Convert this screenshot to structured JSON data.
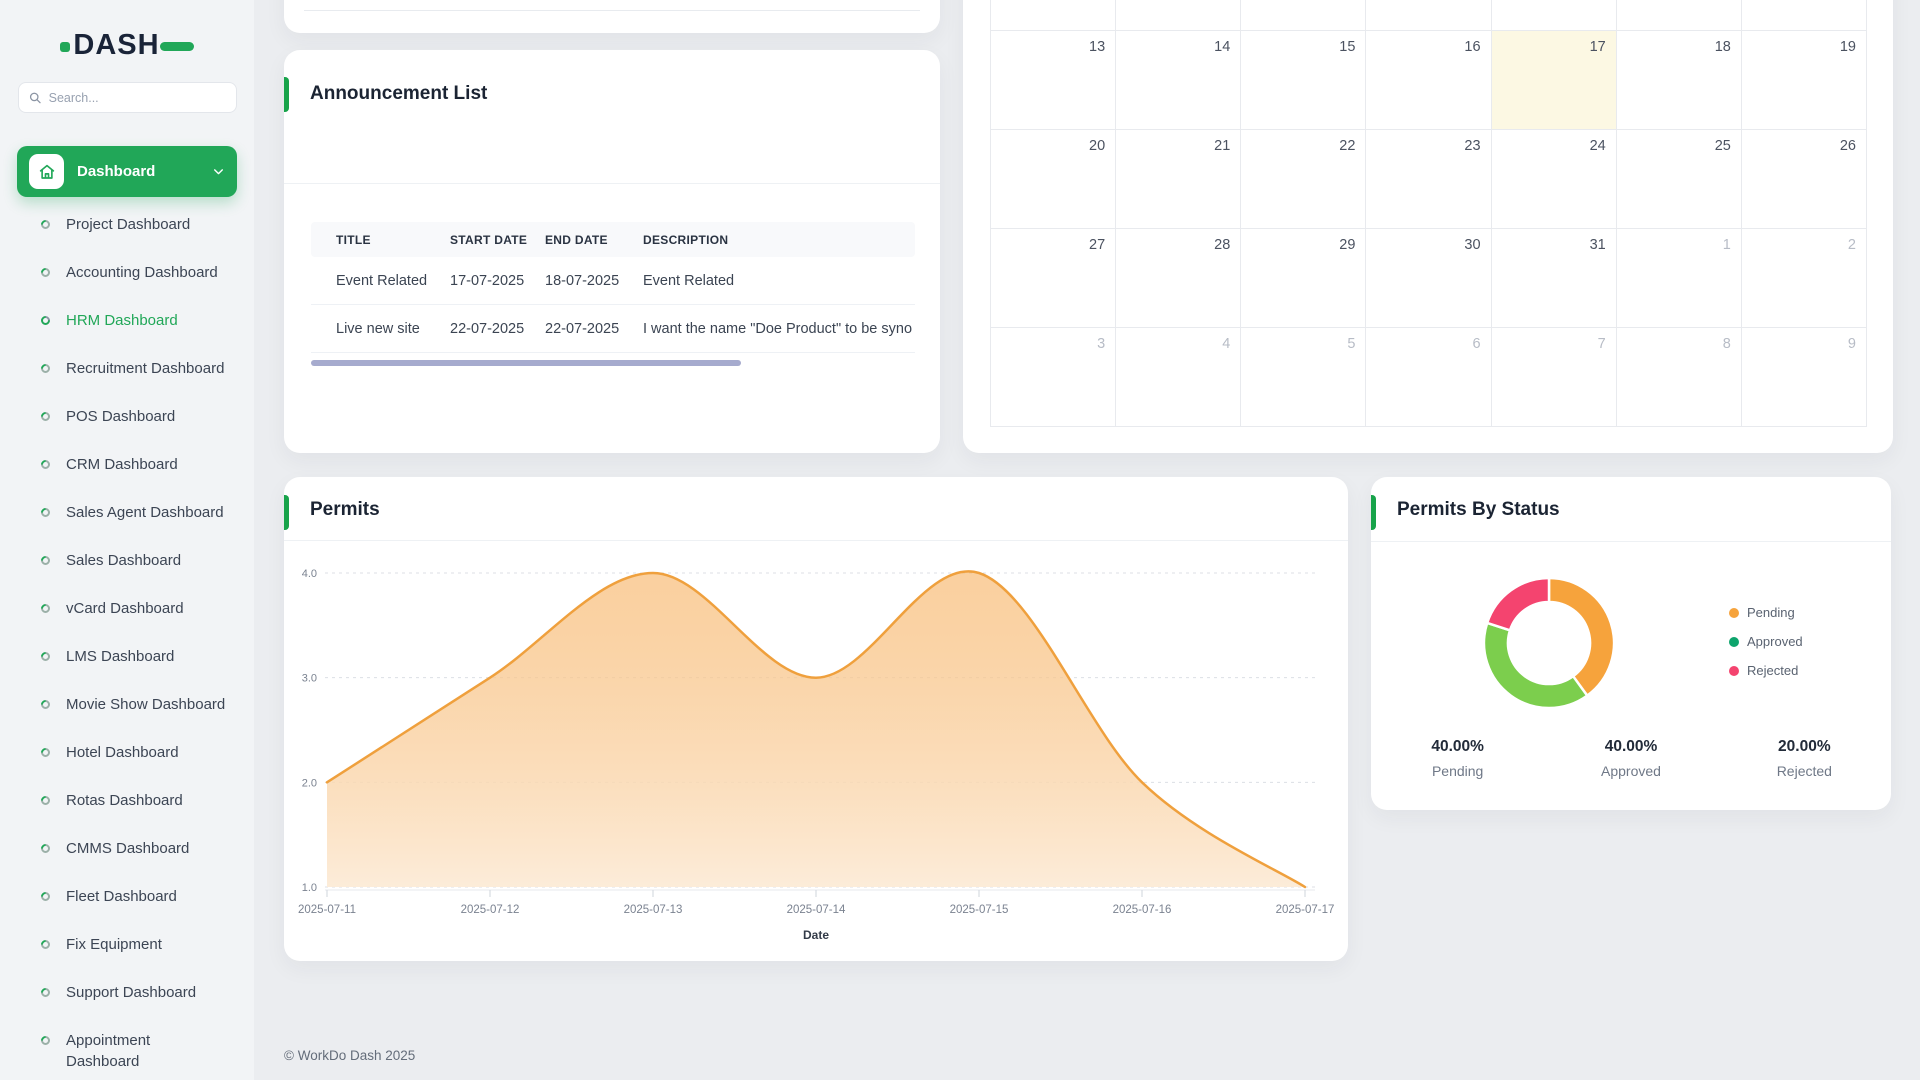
{
  "app": {
    "logo_text": "DASH"
  },
  "footer": {
    "text": "© WorkDo Dash 2025"
  },
  "colors": {
    "primary_green": "#21a758",
    "accent_bar": "#17a34a",
    "area_line": "#efa03d",
    "donut_orange": "#f6a33c",
    "donut_green": "#7cce4d",
    "donut_pink": "#f4446f",
    "legend_approved_dot": "#0da46c",
    "calendar_highlight": "#fcf8e3"
  },
  "sidebar": {
    "search_placeholder": "Search...",
    "menu_label": "Dashboard",
    "items": [
      {
        "label": "Project Dashboard",
        "active": false,
        "wrap": false
      },
      {
        "label": "Accounting Dashboard",
        "active": false,
        "wrap": false
      },
      {
        "label": "HRM Dashboard",
        "active": true,
        "wrap": false
      },
      {
        "label": "Recruitment Dashboard",
        "active": false,
        "wrap": false
      },
      {
        "label": "POS Dashboard",
        "active": false,
        "wrap": false
      },
      {
        "label": "CRM Dashboard",
        "active": false,
        "wrap": false
      },
      {
        "label": "Sales Agent Dashboard",
        "active": false,
        "wrap": false
      },
      {
        "label": "Sales Dashboard",
        "active": false,
        "wrap": false
      },
      {
        "label": "vCard Dashboard",
        "active": false,
        "wrap": false
      },
      {
        "label": "LMS Dashboard",
        "active": false,
        "wrap": false
      },
      {
        "label": "Movie Show Dashboard",
        "active": false,
        "wrap": false
      },
      {
        "label": "Hotel Dashboard",
        "active": false,
        "wrap": false
      },
      {
        "label": "Rotas Dashboard",
        "active": false,
        "wrap": false
      },
      {
        "label": "CMMS Dashboard",
        "active": false,
        "wrap": false
      },
      {
        "label": "Fleet Dashboard",
        "active": false,
        "wrap": false
      },
      {
        "label": "Fix Equipment",
        "active": false,
        "wrap": false
      },
      {
        "label": "Support Dashboard",
        "active": false,
        "wrap": false
      },
      {
        "label": "Appointment Dashboard",
        "active": false,
        "wrap": true
      }
    ]
  },
  "announcements": {
    "title": "Announcement List",
    "columns": [
      "TITLE",
      "START DATE",
      "END DATE",
      "DESCRIPTION"
    ],
    "rows": [
      [
        "Event Related",
        "17-07-2025",
        "18-07-2025",
        "Event Related"
      ],
      [
        "Live new site",
        "22-07-2025",
        "22-07-2025",
        "I want the name \"Doe Product\" to be syno"
      ]
    ]
  },
  "calendar": {
    "rows": [
      [
        "",
        "",
        "",
        "",
        "",
        "",
        ""
      ],
      [
        "13",
        "14",
        "15",
        "16",
        "17",
        "18",
        "19"
      ],
      [
        "20",
        "21",
        "22",
        "23",
        "24",
        "25",
        "26"
      ],
      [
        "27",
        "28",
        "29",
        "30",
        "31",
        "1",
        "2"
      ],
      [
        "3",
        "4",
        "5",
        "6",
        "7",
        "8",
        "9"
      ]
    ],
    "highlight": [
      1,
      4
    ],
    "muted": [
      [
        3,
        5
      ],
      [
        3,
        6
      ],
      [
        4,
        0
      ],
      [
        4,
        1
      ],
      [
        4,
        2
      ],
      [
        4,
        3
      ],
      [
        4,
        4
      ],
      [
        4,
        5
      ],
      [
        4,
        6
      ]
    ]
  },
  "chart_data": [
    {
      "type": "area",
      "title": "Permits",
      "x": [
        "2025-07-11",
        "2025-07-12",
        "2025-07-13",
        "2025-07-14",
        "2025-07-15",
        "2025-07-16",
        "2025-07-17"
      ],
      "series": [
        {
          "name": "Permits",
          "values": [
            2,
            3,
            4,
            3,
            4,
            2,
            1
          ]
        }
      ],
      "xlabel": "Date",
      "ylabel": "",
      "ylim": [
        1,
        4
      ],
      "yticks": [
        "4.0",
        "3.0",
        "2.0",
        "1.0"
      ],
      "grid": "horizontal-dashed",
      "legend_position": "none",
      "line_color": "#efa03d"
    },
    {
      "type": "donut",
      "title": "Permits By Status",
      "labels": [
        "Pending",
        "Approved",
        "Rejected"
      ],
      "values": [
        40,
        40,
        20
      ],
      "slice_colors": [
        "#f6a33c",
        "#7cce4d",
        "#f4446f"
      ],
      "legend_dot_colors": [
        "#f6a33c",
        "#0da46c",
        "#f4446f"
      ],
      "legend_position": "right",
      "stats": [
        {
          "value": "40.00%",
          "label": "Pending"
        },
        {
          "value": "40.00%",
          "label": "Approved"
        },
        {
          "value": "20.00%",
          "label": "Rejected"
        }
      ]
    }
  ]
}
